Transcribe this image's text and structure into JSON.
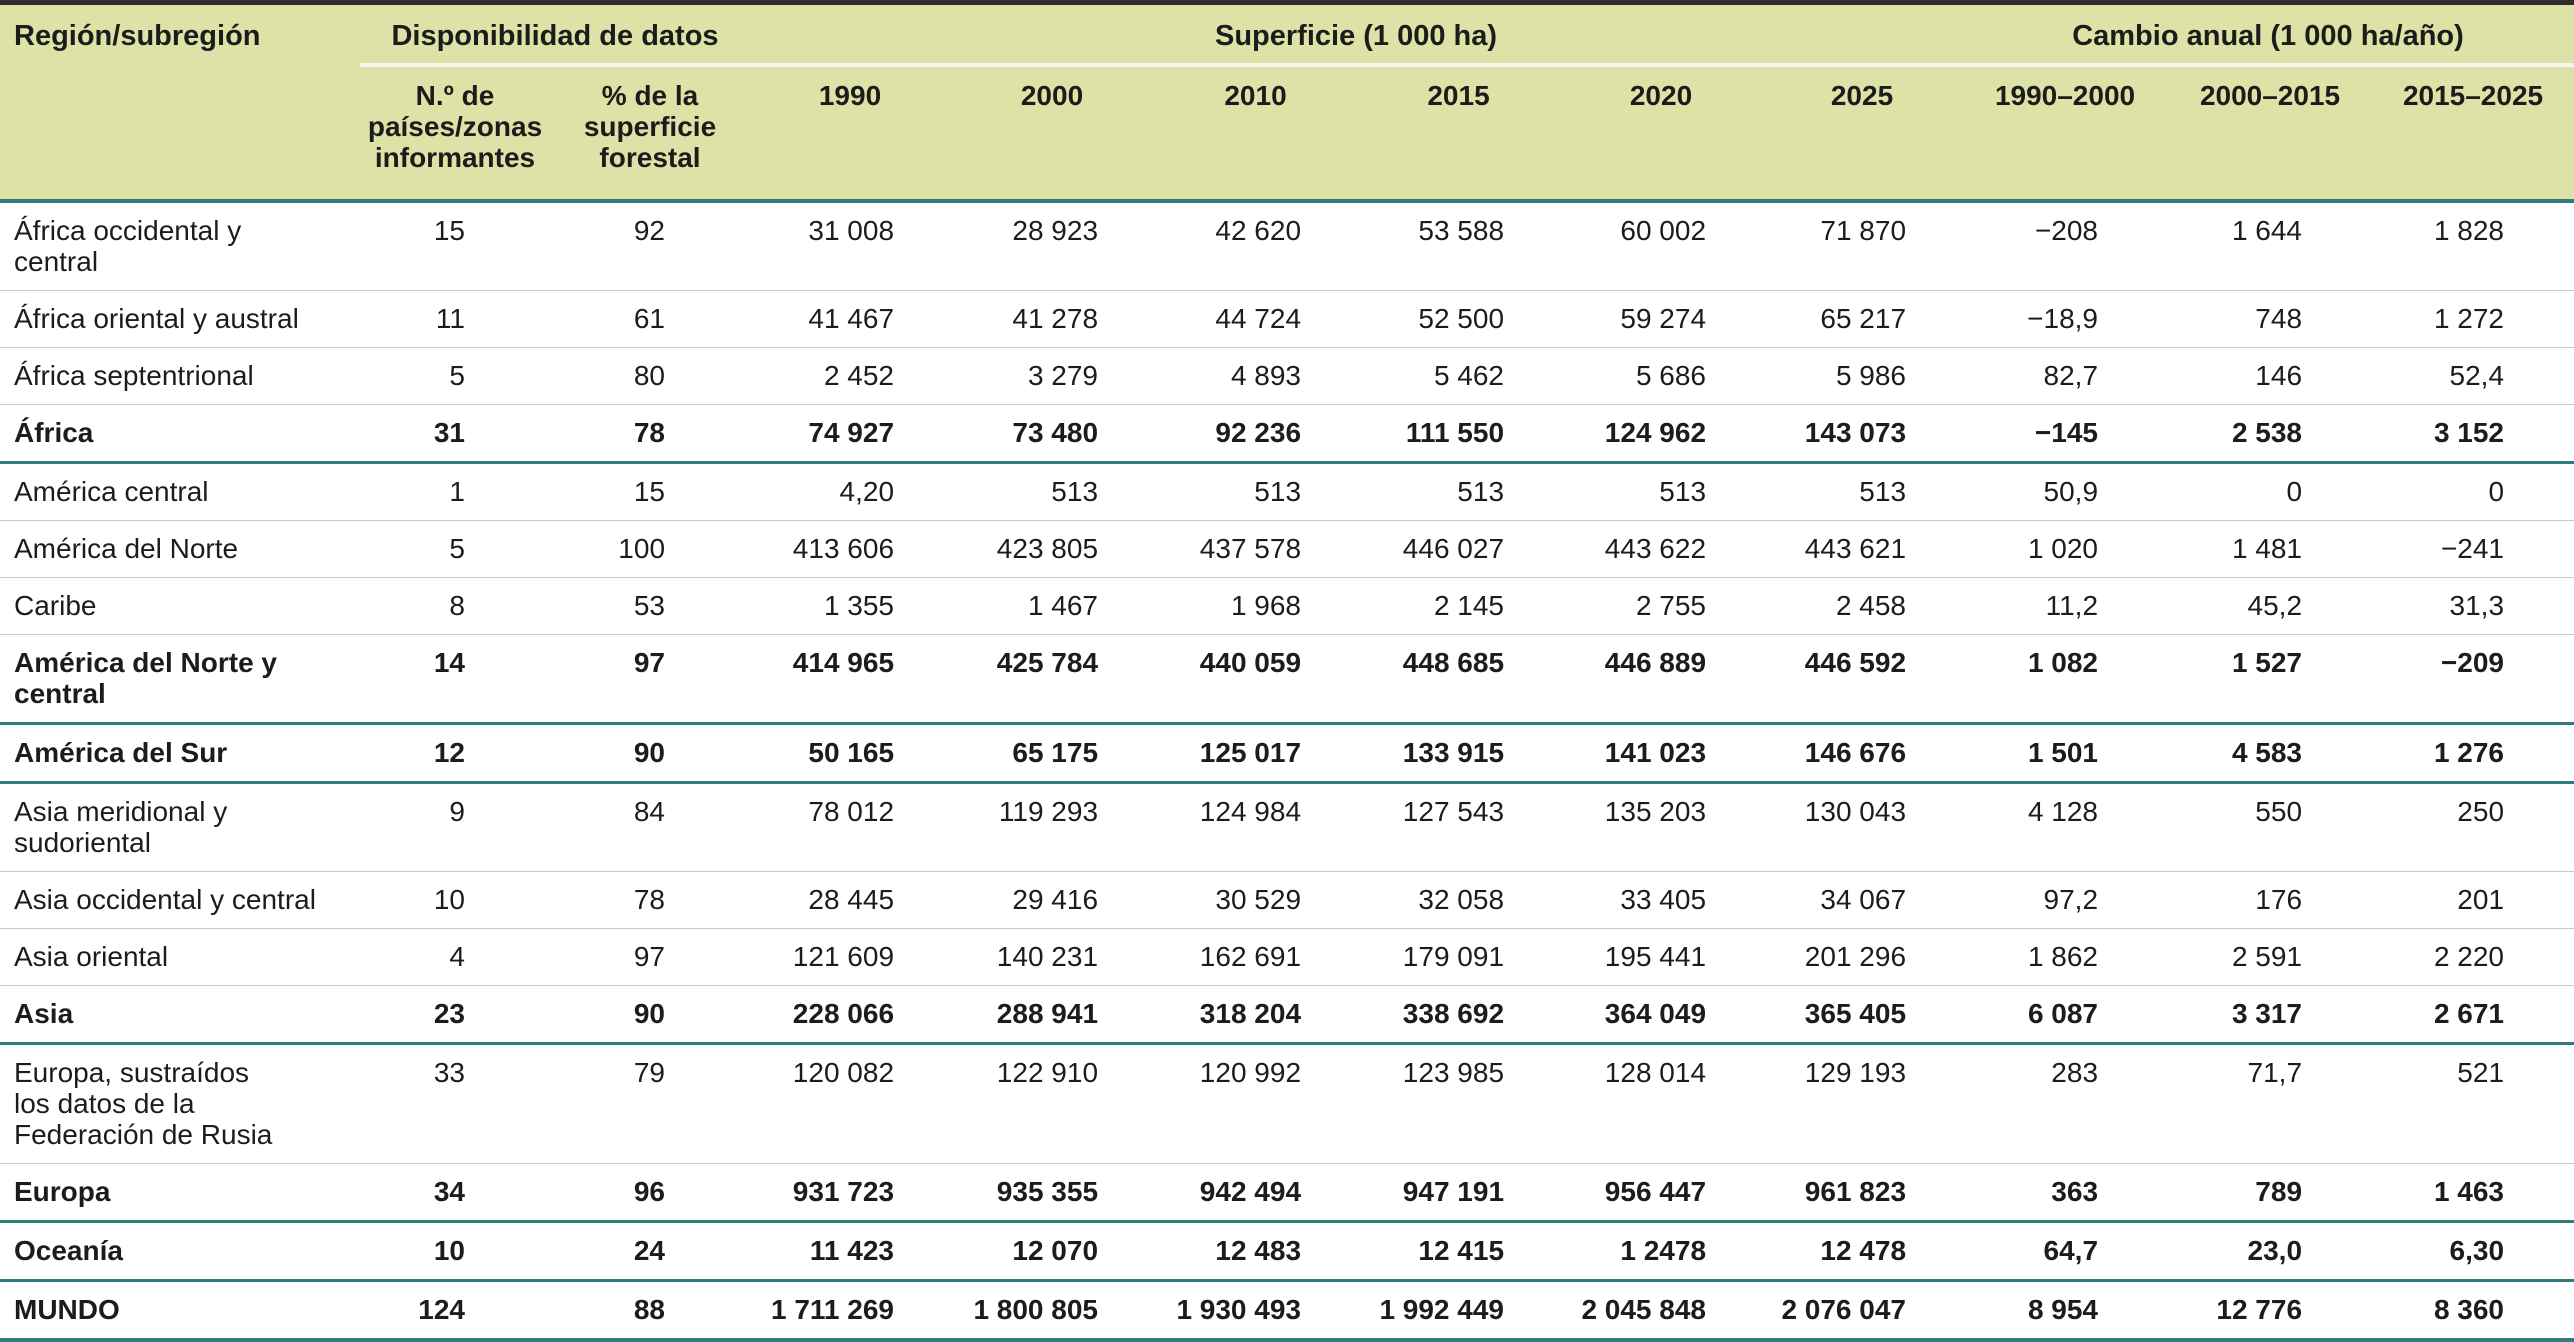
{
  "colors": {
    "header_background": "#dde2a6",
    "teal_border": "#2f7d7a",
    "row_divider": "#c9c9c9",
    "header_rule": "#f8f6ec",
    "top_border": "#2e2e2e",
    "text": "#1c1c1c"
  },
  "table": {
    "corner_header": "Región/subregión",
    "groups": [
      {
        "label": "Disponibilidad de datos",
        "span": 2
      },
      {
        "label": "Superficie (1 000 ha)",
        "span": 6
      },
      {
        "label": "Cambio anual (1 000 ha/año)",
        "span": 3
      }
    ],
    "sub_headers": [
      "N.º de\npaíses/zonas\ninformantes",
      "% de la\nsuperficie\nforestal",
      "1990",
      "2000",
      "2010",
      "2015",
      "2020",
      "2025",
      "1990–2000",
      "2000–2015",
      "2015–2025"
    ],
    "rows": [
      {
        "region": "África occidental y\ncentral",
        "bold": false,
        "values": [
          "15",
          "92",
          "31 008",
          "28 923",
          "42 620",
          "53 588",
          "60 002",
          "71 870",
          "−208",
          "1 644",
          "1 828"
        ]
      },
      {
        "region": "África oriental y austral",
        "bold": false,
        "values": [
          "11",
          "61",
          "41 467",
          "41 278",
          "44 724",
          "52 500",
          "59 274",
          "65 217",
          "−18,9",
          "748",
          "1 272"
        ]
      },
      {
        "region": "África septentrional",
        "bold": false,
        "values": [
          "5",
          "80",
          "2 452",
          "3 279",
          "4 893",
          "5 462",
          "5 686",
          "5 986",
          "82,7",
          "146",
          "52,4"
        ]
      },
      {
        "region": "África",
        "bold": true,
        "values": [
          "31",
          "78",
          "74 927",
          "73 480",
          "92 236",
          "111 550",
          "124 962",
          "143 073",
          "−145",
          "2 538",
          "3 152"
        ]
      },
      {
        "region": "América central",
        "bold": false,
        "values": [
          "1",
          "15",
          "4,20",
          "513",
          "513",
          "513",
          "513",
          "513",
          "50,9",
          "0",
          "0"
        ]
      },
      {
        "region": "América del Norte",
        "bold": false,
        "values": [
          "5",
          "100",
          "413 606",
          "423 805",
          "437 578",
          "446 027",
          "443 622",
          "443 621",
          "1 020",
          "1 481",
          "−241"
        ]
      },
      {
        "region": "Caribe",
        "bold": false,
        "values": [
          "8",
          "53",
          "1 355",
          "1 467",
          "1 968",
          "2 145",
          "2 755",
          "2 458",
          "11,2",
          "45,2",
          "31,3"
        ]
      },
      {
        "region": "América del Norte y\ncentral",
        "bold": true,
        "values": [
          "14",
          "97",
          "414 965",
          "425 784",
          "440 059",
          "448 685",
          "446 889",
          "446 592",
          "1 082",
          "1 527",
          "−209"
        ]
      },
      {
        "region": "América del Sur",
        "bold": true,
        "values": [
          "12",
          "90",
          "50 165",
          "65 175",
          "125 017",
          "133 915",
          "141 023",
          "146 676",
          "1 501",
          "4 583",
          "1 276"
        ]
      },
      {
        "region": "Asia meridional y\nsudoriental",
        "bold": false,
        "values": [
          "9",
          "84",
          "78 012",
          "119 293",
          "124 984",
          "127 543",
          "135 203",
          "130 043",
          "4 128",
          "550",
          "250"
        ]
      },
      {
        "region": "Asia occidental y central",
        "bold": false,
        "values": [
          "10",
          "78",
          "28 445",
          "29 416",
          "30 529",
          "32 058",
          "33 405",
          "34 067",
          "97,2",
          "176",
          "201"
        ]
      },
      {
        "region": "Asia oriental",
        "bold": false,
        "values": [
          "4",
          "97",
          "121 609",
          "140 231",
          "162 691",
          "179 091",
          "195 441",
          "201 296",
          "1 862",
          "2 591",
          "2 220"
        ]
      },
      {
        "region": "Asia",
        "bold": true,
        "values": [
          "23",
          "90",
          "228 066",
          "288 941",
          "318 204",
          "338 692",
          "364 049",
          "365 405",
          "6 087",
          "3 317",
          "2 671"
        ]
      },
      {
        "region": "Europa, sustraídos\nlos datos de la\nFederación de Rusia",
        "bold": false,
        "values": [
          "33",
          "79",
          "120 082",
          "122 910",
          "120 992",
          "123 985",
          "128 014",
          "129 193",
          "283",
          "71,7",
          "521"
        ]
      },
      {
        "region": "Europa",
        "bold": true,
        "values": [
          "34",
          "96",
          "931 723",
          "935 355",
          "942 494",
          "947 191",
          "956 447",
          "961 823",
          "363",
          "789",
          "1 463"
        ]
      },
      {
        "region": "Oceanía",
        "bold": true,
        "values": [
          "10",
          "24",
          "11 423",
          "12 070",
          "12 483",
          "12 415",
          "1 2478",
          "12 478",
          "64,7",
          "23,0",
          "6,30"
        ]
      },
      {
        "region": "MUNDO",
        "bold": true,
        "values": [
          "124",
          "88",
          "1 711 269",
          "1 800 805",
          "1 930 493",
          "1 992 449",
          "2 045 848",
          "2 076 047",
          "8 954",
          "12 776",
          "8 360"
        ]
      }
    ]
  }
}
